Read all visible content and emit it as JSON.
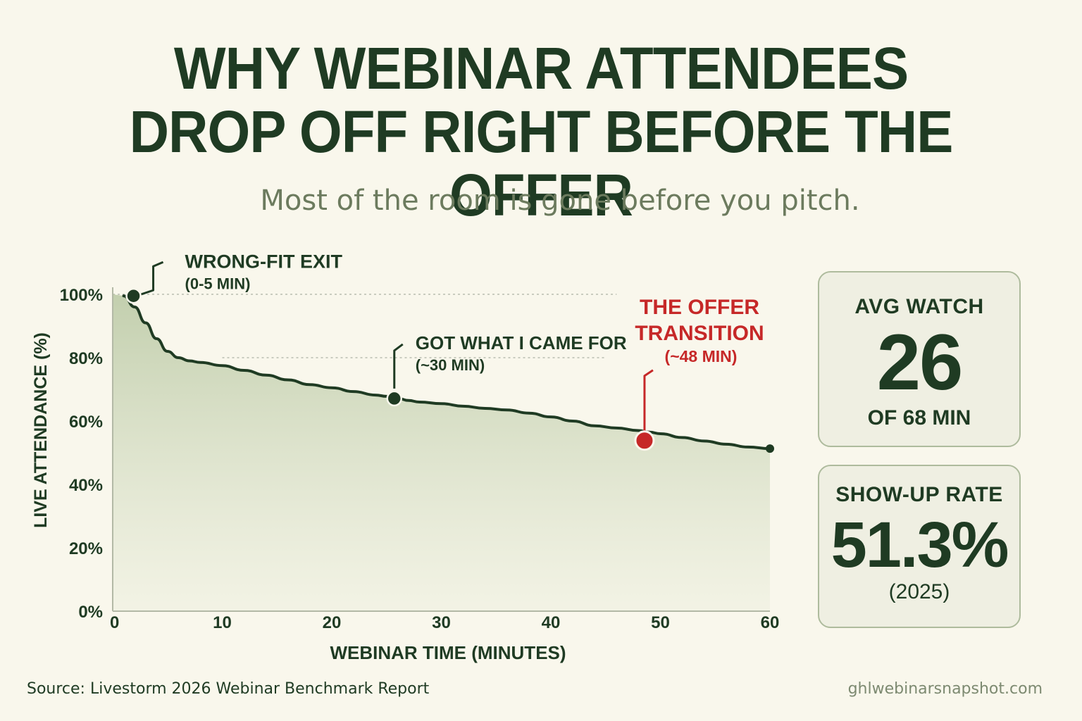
{
  "header": {
    "title_line1": "WHY WEBINAR ATTENDEES",
    "title_line2": "DROP OFF RIGHT BEFORE THE OFFER",
    "subtitle": "Most of the room is gone before you pitch."
  },
  "chart_data": {
    "type": "area",
    "title": "",
    "xlabel": "WEBINAR TIME (MINUTES)",
    "ylabel": "LIVE ATTENDANCE (%)",
    "xlim": [
      0,
      60
    ],
    "ylim": [
      0,
      100
    ],
    "x_ticks": [
      0,
      10,
      20,
      30,
      40,
      50,
      60
    ],
    "y_ticks": [
      0,
      20,
      40,
      60,
      80,
      100
    ],
    "y_tick_labels": [
      "0%",
      "20%",
      "40%",
      "60%",
      "80%",
      "100%"
    ],
    "series": [
      {
        "x": [
          1,
          2,
          3,
          4,
          5,
          6,
          7,
          8,
          10,
          12,
          14,
          16,
          18,
          20,
          22,
          24,
          25,
          26,
          27,
          28,
          30,
          32,
          34,
          36,
          38,
          40,
          42,
          44,
          46,
          48,
          49,
          50,
          52,
          54,
          56,
          58,
          60
        ],
        "values": [
          99.5,
          96,
          91,
          86,
          82,
          80,
          79,
          78.5,
          77.5,
          76,
          74.5,
          73,
          71.5,
          70.5,
          69.3,
          68.2,
          67.8,
          67.2,
          66.5,
          66,
          65.5,
          64.7,
          64,
          63.5,
          62.5,
          61.3,
          60,
          58.5,
          57.8,
          57,
          56.5,
          56,
          54.8,
          53.7,
          52.7,
          51.8,
          51.3
        ]
      }
    ],
    "annotations": [
      {
        "x": 1,
        "y": 99.5,
        "label": "WRONG-FIT EXIT",
        "sublabel": "(0-5 MIN)",
        "highlight": false
      },
      {
        "x": 25,
        "y": 67.8,
        "label": "GOT WHAT I CAME FOR",
        "sublabel": "(~30 MIN)",
        "highlight": false
      },
      {
        "x": 49,
        "y": 56.5,
        "label": "THE OFFER",
        "label2": "TRANSITION",
        "sublabel": "(~48 MIN)",
        "highlight": true
      }
    ],
    "colors": {
      "line": "#1f3b23",
      "area": "#c9d5b6",
      "highlight": "#c62828"
    }
  },
  "stats": {
    "avg_watch": {
      "label": "AVG WATCH",
      "value": "26",
      "sub": "OF 68 MIN"
    },
    "show_up": {
      "label": "SHOW-UP RATE",
      "value": "51.3%",
      "sub": "(2025)"
    }
  },
  "footer": {
    "source": "Source:  Livestorm 2026 Webinar Benchmark Report",
    "site": "ghlwebinarsnapshot.com"
  }
}
